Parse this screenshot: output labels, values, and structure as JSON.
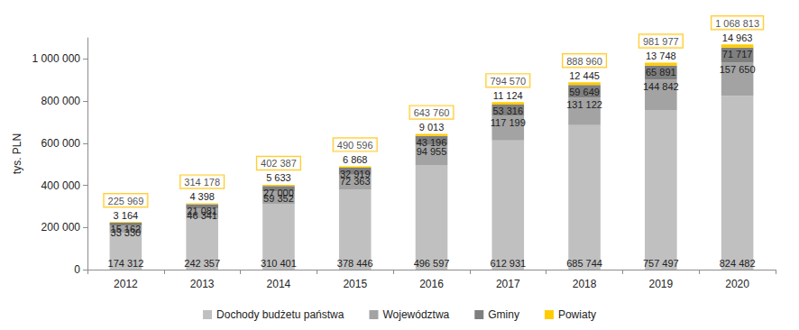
{
  "chart_data": {
    "type": "bar",
    "stacked": true,
    "data_labels": true,
    "grid": false,
    "legend": "bottom",
    "y_label": "tys. PLN",
    "categories": [
      "2012",
      "2013",
      "2014",
      "2015",
      "2016",
      "2017",
      "2018",
      "2019",
      "2020"
    ],
    "series": [
      {
        "name": "Dochody budżetu państwa",
        "color": "#c0c0c0",
        "values": [
          174312,
          242357,
          310401,
          378446,
          496597,
          612931,
          685744,
          757497,
          824482
        ],
        "value_labels": [
          "174 312",
          "242 357",
          "310 401",
          "378 446",
          "496 597",
          "612 931",
          "685 744",
          "757 497",
          "824 482"
        ]
      },
      {
        "name": "Województwa",
        "color": "#a3a3a3",
        "values": [
          33330,
          46341,
          59352,
          72363,
          94955,
          117199,
          131122,
          144842,
          157650
        ],
        "value_labels": [
          "33 330",
          "46 341",
          "59 352",
          "72 363",
          "94 955",
          "117 199",
          "131 122",
          "144 842",
          "157 650"
        ]
      },
      {
        "name": "Gminy",
        "color": "#7f7f7f",
        "values": [
          15162,
          21081,
          27000,
          32919,
          43196,
          53316,
          59649,
          65891,
          71717
        ],
        "value_labels": [
          "15 162",
          "21 081",
          "27 000",
          "32 919",
          "43 196",
          "53 316",
          "59 649",
          "65 891",
          "71 717"
        ]
      },
      {
        "name": "Powiaty",
        "color": "#ffcc00",
        "values": [
          3164,
          4398,
          5633,
          6868,
          9013,
          11124,
          12445,
          13748,
          14963
        ],
        "value_labels": [
          "3 164",
          "4 398",
          "5 633",
          "6 868",
          "9 013",
          "11 124",
          "12 445",
          "13 748",
          "14 963"
        ]
      }
    ],
    "totals": [
      225969,
      314178,
      402387,
      490596,
      643760,
      794570,
      888960,
      981977,
      1068813
    ],
    "total_labels": [
      "225 969",
      "314 178",
      "402 387",
      "490 596",
      "643 760",
      "794 570",
      "888 960",
      "981 977",
      "1 068 813"
    ],
    "ylim": [
      0,
      1100000
    ],
    "yticks": [
      0,
      {
        "value": 200000,
        "label": "200 000"
      },
      {
        "value": 400000,
        "label": "400 000"
      },
      {
        "value": 600000,
        "label": "600 000"
      },
      {
        "value": 800000,
        "label": "800 000"
      },
      {
        "value": 1000000,
        "label": "1 000 000"
      }
    ]
  }
}
